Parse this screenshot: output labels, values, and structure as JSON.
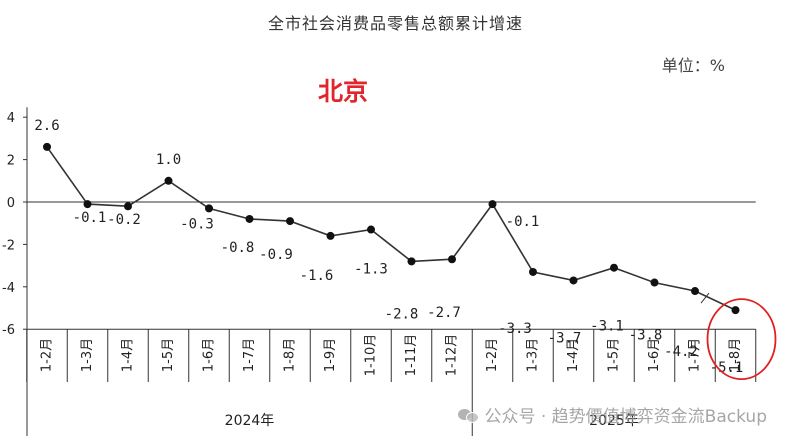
{
  "chart_data": {
    "type": "line",
    "title": "全市社会消费品零售总额累计增速",
    "unit_label": "单位：%",
    "region_label": "北京",
    "categories": [
      "1-2月",
      "1-3月",
      "1-4月",
      "1-5月",
      "1-6月",
      "1-7月",
      "1-8月",
      "1-9月",
      "1-10月",
      "1-11月",
      "1-12月",
      "1-2月",
      "1-3月",
      "1-4月",
      "1-5月",
      "1-6月",
      "1-7月",
      "1-8月"
    ],
    "year_groups": [
      {
        "label": "2024年",
        "count": 11
      },
      {
        "label": "2025年",
        "count": 7
      }
    ],
    "series": [
      {
        "values": [
          2.6,
          -0.1,
          -0.2,
          1.0,
          -0.3,
          -0.8,
          -0.9,
          -1.6,
          -1.3,
          -2.8,
          -2.7,
          -0.1,
          -3.3,
          -3.7,
          -3.1,
          -3.8,
          -4.2,
          -5.1
        ]
      }
    ],
    "data_labels": [
      "2.6",
      "-0.1",
      "-0.2",
      "1.0",
      "-0.3",
      "-0.8",
      "-0.9",
      "-1.6",
      "-1.3",
      "-2.8",
      "-2.7",
      "-0.1",
      "-3.3",
      "-3.7",
      "-3.1",
      "-3.8",
      "-4.2",
      "-5.1"
    ],
    "y_ticks": [
      4,
      2,
      0,
      -2,
      -4,
      -6
    ],
    "ylim": [
      -6,
      4
    ],
    "highlight_index": 17,
    "colors": {
      "line": "#333333",
      "highlight": "#e02020",
      "title_red": "#e0262c"
    }
  },
  "watermark": "公众号 · 趋势價值博弈资金流Backup"
}
